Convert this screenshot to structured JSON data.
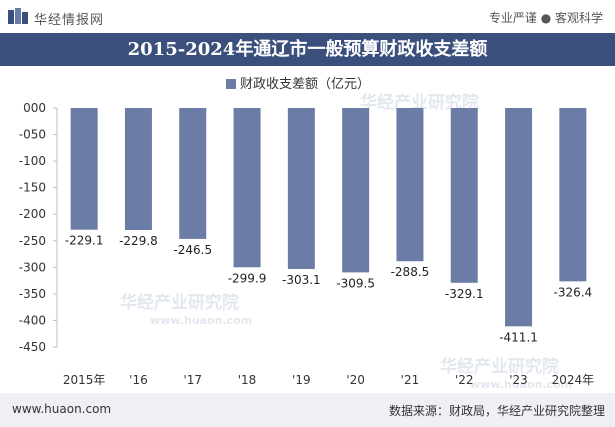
{
  "header": {
    "brand": "华经情报网",
    "tagline": "专业严谨 ● 客观科学"
  },
  "watermark": {
    "text_cn": "华经产业研究院",
    "text_url": "www.huaon.com"
  },
  "footer": {
    "website": "www.huaon.com",
    "source": "数据来源：财政局，华经产业研究院整理"
  },
  "colors": {
    "title_bar": "#3b4f7c",
    "bar": "#6b7ca6",
    "footer_bg": "#eef0f5"
  },
  "chart_data": {
    "type": "bar",
    "title": "2015-2024年通辽市一般预算财政收支差额",
    "categories": [
      "2015年",
      "'16",
      "'17",
      "'18",
      "'19",
      "'20",
      "'21",
      "'22",
      "'23",
      "2024年"
    ],
    "series": [
      {
        "name": "财政收支差额（亿元）",
        "values": [
          -229.1,
          -229.8,
          -246.5,
          -299.9,
          -303.1,
          -309.5,
          -288.5,
          -329.1,
          -411.1,
          -326.4
        ]
      }
    ],
    "data_labels": [
      "-229.1",
      "-229.8",
      "-246.5",
      "-299.9",
      "-303.1",
      "-309.5",
      "-288.5",
      "-329.1",
      "-411.1",
      "-326.4"
    ],
    "ylim": [
      -450,
      0
    ],
    "y_ticks": [
      0,
      -50,
      -100,
      -150,
      -200,
      -250,
      -300,
      -350,
      -400,
      -450
    ],
    "y_tick_labels": [
      "000",
      "-050",
      "-100",
      "-150",
      "-200",
      "-250",
      "-300",
      "-350",
      "-400",
      "-450"
    ],
    "xlabel": "",
    "ylabel": "",
    "grid": false,
    "legend_position": "top-center"
  }
}
